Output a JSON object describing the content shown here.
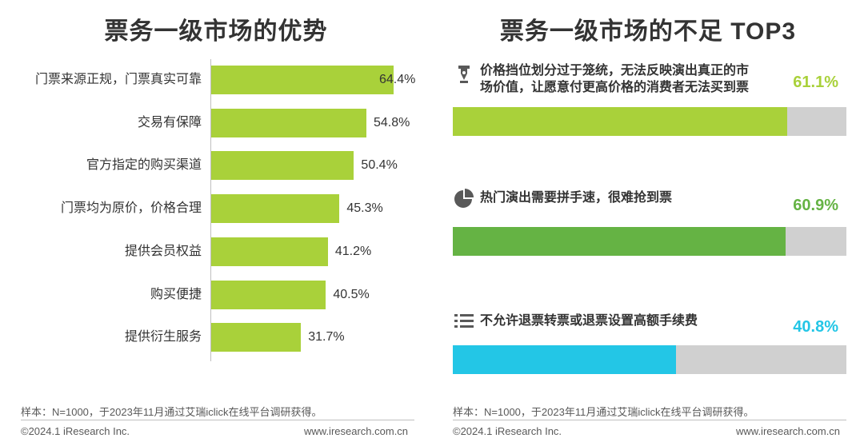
{
  "left": {
    "title": "票务一级市场的优势",
    "note": "样本：N=1000，于2023年11月通过艾瑞iclick在线平台调研获得。",
    "footer_left": "©2024.1 iResearch Inc.",
    "footer_right": "www.iresearch.com.cn"
  },
  "right": {
    "title": "票务一级市场的不足 TOP3",
    "note": "样本：N=1000，于2023年11月通过艾瑞iclick在线平台调研获得。",
    "footer_left": "©2024.1 iResearch Inc.",
    "footer_right": "www.iresearch.com.cn",
    "items": [
      {
        "icon": "pen-nib-icon",
        "text": "价格挡位划分过于笼统，无法反映演出真正的市场价值，让愿意付更高价格的消费者无法买到票",
        "value_label": "61.1%",
        "value": 61.1,
        "color": "#a9d13a",
        "label_color": "#a9d13a"
      },
      {
        "icon": "pie-chart-icon",
        "text": "热门演出需要拼手速，很难抢到票",
        "value_label": "60.9%",
        "value": 60.9,
        "color": "#65b344",
        "label_color": "#65b344"
      },
      {
        "icon": "list-icon",
        "text": "不允许退票转票或退票设置高额手续费",
        "value_label": "40.8%",
        "value": 40.8,
        "color": "#23c6e6",
        "label_color": "#23c6e6"
      }
    ]
  },
  "chart_data": [
    {
      "type": "bar",
      "orientation": "horizontal",
      "title": "票务一级市场的优势",
      "categories": [
        "门票来源正规，门票真实可靠",
        "交易有保障",
        "官方指定的购买渠道",
        "门票均为原价，价格合理",
        "提供会员权益",
        "购买便捷",
        "提供衍生服务"
      ],
      "values": [
        64.4,
        54.8,
        50.4,
        45.3,
        41.2,
        40.5,
        31.7
      ],
      "value_labels": [
        "64.4%",
        "54.8%",
        "50.4%",
        "45.3%",
        "41.2%",
        "40.5%",
        "31.7%"
      ],
      "xlim": [
        0,
        100
      ],
      "color": "#a9d13a"
    },
    {
      "type": "bar",
      "orientation": "horizontal",
      "title": "票务一级市场的不足 TOP3",
      "categories": [
        "价格挡位划分过于笼统，无法反映演出真正的市场价值，让愿意付更高价格的消费者无法买到票",
        "热门演出需要拼手速，很难抢到票",
        "不允许退票转票或退票设置高额手续费"
      ],
      "values": [
        61.1,
        60.9,
        40.8
      ],
      "value_labels": [
        "61.1%",
        "60.9%",
        "40.8%"
      ],
      "xlim": [
        0,
        72
      ],
      "colors": [
        "#a9d13a",
        "#65b344",
        "#23c6e6"
      ]
    }
  ]
}
